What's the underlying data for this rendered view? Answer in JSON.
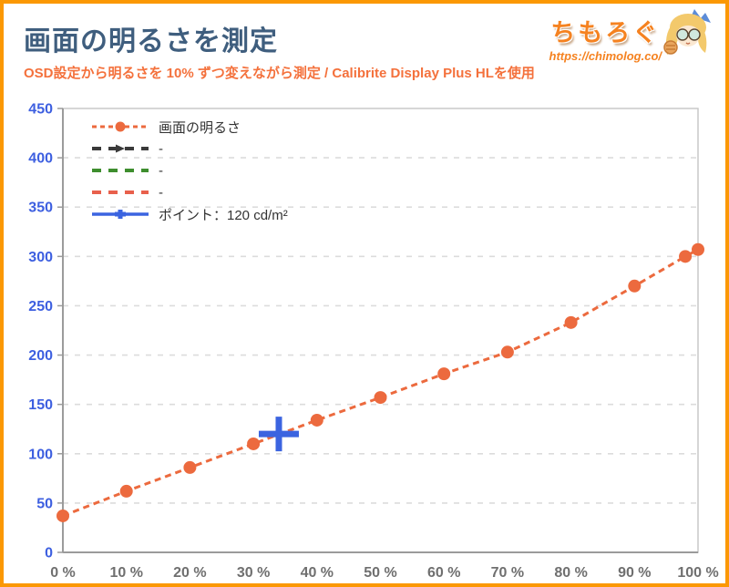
{
  "header": {
    "title": "画面の明るさを測定",
    "subtitle": "OSD設定から明るさを 10% ずつ変えながら測定 / Calibrite Display Plus HLを使用"
  },
  "logo": {
    "site_name": "ちもろぐ",
    "site_url": "https://chimolog.co/"
  },
  "colors": {
    "page_border": "#FB9804",
    "title": "#3F5E7E",
    "subtitle": "#F4713C",
    "logo_orange": "#F58220",
    "series_orange": "#EC6A3E",
    "point_blue": "#3B64E0",
    "y_label": "#3D5FE0",
    "x_label": "#6F6F6F",
    "grid": "#DCDCDC",
    "frame": "#C9C9C9",
    "axis": "#9B9B9B",
    "legend_label": "#333333"
  },
  "chart_data": {
    "type": "line",
    "title": "画面の明るさを測定",
    "xlabel": "",
    "ylabel": "",
    "xlim": [
      0,
      100
    ],
    "ylim": [
      0,
      450
    ],
    "x_tick_values": [
      0,
      10,
      20,
      30,
      40,
      50,
      60,
      70,
      80,
      90,
      100
    ],
    "x_tick_labels": [
      "0 %",
      "10 %",
      "20 %",
      "30 %",
      "40 %",
      "50 %",
      "60 %",
      "70 %",
      "80 %",
      "90 %",
      "100 %"
    ],
    "y_ticks": [
      0,
      50,
      100,
      150,
      200,
      250,
      300,
      350,
      400,
      450
    ],
    "grid": "horizontal-dashed",
    "legend_position": "top-left-inside",
    "series": [
      {
        "name": "画面の明るさ",
        "color": "#EC6A3E",
        "line": "dashed",
        "marker": "circle",
        "x": [
          0,
          10,
          20,
          30,
          40,
          50,
          60,
          70,
          80,
          90,
          98,
          100
        ],
        "values": [
          37,
          62,
          86,
          110,
          134,
          157,
          181,
          203,
          233,
          270,
          300,
          307
        ]
      },
      {
        "name": "-",
        "color": "#3A3A3A",
        "line": "dashed",
        "marker": "arrow",
        "x": [],
        "values": []
      },
      {
        "name": "-",
        "color": "#3E8E2E",
        "line": "dashed",
        "marker": "none",
        "x": [],
        "values": []
      },
      {
        "name": "-",
        "color": "#E8604C",
        "line": "dashed",
        "marker": "none",
        "x": [],
        "values": []
      },
      {
        "name": "ポイント：120 cd/m²",
        "color": "#3B64E0",
        "line": "solid",
        "marker": "plus",
        "x": [
          34
        ],
        "values": [
          120
        ]
      }
    ]
  }
}
